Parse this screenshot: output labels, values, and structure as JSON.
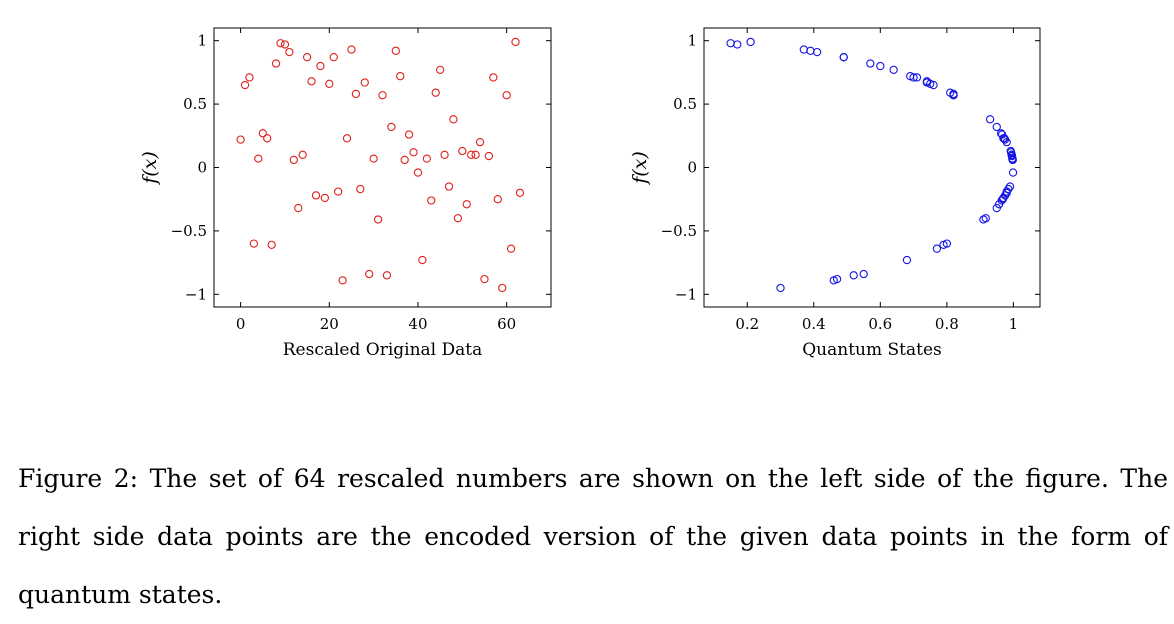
{
  "chart_data": [
    {
      "type": "scatter",
      "marker_color": "#e0201b",
      "xlabel": "Rescaled Original Data",
      "ylabel": "f(x)",
      "xlim": [
        -6,
        70
      ],
      "ylim": [
        -1.1,
        1.1
      ],
      "xticks": [
        0,
        20,
        40,
        60
      ],
      "yticks": [
        -1,
        -0.5,
        0,
        0.5,
        1
      ],
      "xtick_labels": [
        "0",
        "20",
        "40",
        "60"
      ],
      "ytick_labels": [
        "−1",
        "−0.5",
        "0",
        "0.5",
        "1"
      ],
      "grid": false,
      "x": [
        0,
        1,
        2,
        3,
        4,
        5,
        6,
        7,
        8,
        9,
        10,
        11,
        12,
        13,
        14,
        15,
        16,
        17,
        18,
        19,
        20,
        21,
        22,
        23,
        24,
        25,
        26,
        27,
        28,
        29,
        30,
        31,
        32,
        33,
        34,
        35,
        36,
        37,
        38,
        39,
        40,
        41,
        42,
        43,
        44,
        45,
        46,
        47,
        48,
        49,
        50,
        51,
        52,
        53,
        54,
        55,
        56,
        57,
        58,
        59,
        60,
        61,
        62,
        63
      ],
      "y": [
        0.22,
        0.65,
        0.71,
        -0.6,
        0.07,
        0.27,
        0.23,
        -0.61,
        0.82,
        0.98,
        0.97,
        0.91,
        0.06,
        -0.32,
        0.1,
        0.87,
        0.68,
        -0.22,
        0.8,
        -0.24,
        0.66,
        0.87,
        -0.19,
        -0.89,
        0.23,
        0.93,
        0.58,
        -0.17,
        0.67,
        -0.84,
        0.07,
        -0.41,
        0.57,
        -0.85,
        0.32,
        0.92,
        0.72,
        0.06,
        0.26,
        0.12,
        -0.04,
        -0.73,
        0.07,
        -0.26,
        0.59,
        0.77,
        0.1,
        -0.15,
        0.38,
        -0.4,
        0.13,
        -0.29,
        0.1,
        0.1,
        0.2,
        -0.88,
        0.09,
        0.71,
        -0.25,
        -0.95,
        0.57,
        -0.64,
        0.99,
        -0.2
      ]
    },
    {
      "type": "scatter",
      "marker_color": "#1414e6",
      "xlabel": "Quantum States",
      "ylabel": "f(x)",
      "xlim": [
        0.07,
        1.08
      ],
      "ylim": [
        -1.1,
        1.1
      ],
      "xticks": [
        0.2,
        0.4,
        0.6,
        0.8,
        1
      ],
      "yticks": [
        -1,
        -0.5,
        0,
        0.5,
        1
      ],
      "xtick_labels": [
        "0.2",
        "0.4",
        "0.6",
        "0.8",
        "1"
      ],
      "ytick_labels": [
        "−1",
        "−0.5",
        "0",
        "0.5",
        "1"
      ],
      "grid": false,
      "x": [
        0.975,
        0.76,
        0.71,
        0.8,
        0.997,
        0.963,
        0.973,
        0.79,
        0.57,
        0.15,
        0.17,
        0.41,
        0.998,
        0.95,
        0.995,
        0.49,
        0.74,
        0.975,
        0.6,
        0.97,
        0.75,
        0.49,
        0.98,
        0.46,
        0.97,
        0.37,
        0.82,
        0.985,
        0.74,
        0.55,
        0.997,
        0.91,
        0.82,
        0.52,
        0.95,
        0.39,
        0.69,
        0.998,
        0.966,
        0.993,
        0.999,
        0.68,
        0.997,
        0.965,
        0.81,
        0.64,
        0.995,
        0.99,
        0.93,
        0.917,
        0.992,
        0.957,
        0.995,
        0.995,
        0.98,
        0.47,
        0.996,
        0.7,
        0.968,
        0.3,
        0.82,
        0.77,
        0.21,
        0.98
      ],
      "y": [
        0.22,
        0.65,
        0.71,
        -0.6,
        0.07,
        0.27,
        0.23,
        -0.61,
        0.82,
        0.98,
        0.97,
        0.91,
        0.06,
        -0.32,
        0.1,
        0.87,
        0.68,
        -0.22,
        0.8,
        -0.24,
        0.66,
        0.87,
        -0.19,
        -0.89,
        0.23,
        0.93,
        0.58,
        -0.17,
        0.67,
        -0.84,
        0.07,
        -0.41,
        0.57,
        -0.85,
        0.32,
        0.92,
        0.72,
        0.06,
        0.26,
        0.12,
        -0.04,
        -0.73,
        0.07,
        -0.26,
        0.59,
        0.77,
        0.1,
        -0.15,
        0.38,
        -0.4,
        0.13,
        -0.29,
        0.1,
        0.1,
        0.2,
        -0.88,
        0.09,
        0.71,
        -0.25,
        -0.95,
        0.57,
        -0.64,
        0.99,
        -0.2
      ]
    }
  ],
  "caption": "Figure 2: The set of 64 rescaled numbers are shown on the left side of the figure. The right side data points are the encoded version of the given data points in the form of quantum states."
}
